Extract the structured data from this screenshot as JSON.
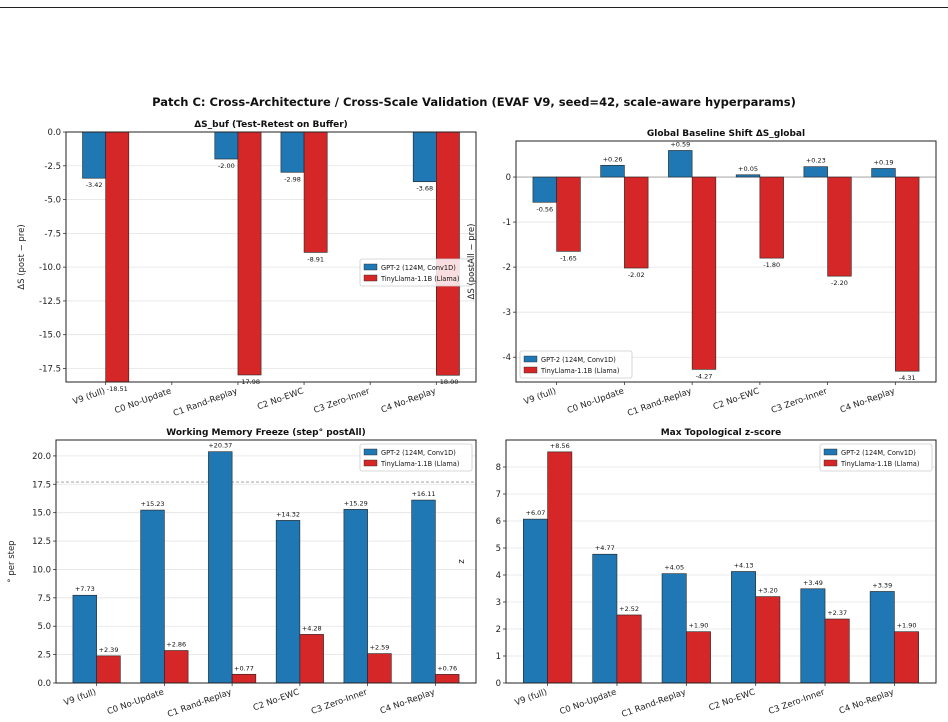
{
  "suptitle": "Patch C: Cross-Architecture / Cross-Scale Validation  (EVAF V9, seed=42, scale-aware hyperparams)",
  "colors": {
    "gpt2": "#1f77b4",
    "llama": "#d62728"
  },
  "chart_data": [
    {
      "type": "bar",
      "title": "ΔS_buf  (Test-Retest on Buffer)",
      "xlabel": "",
      "ylabel": "ΔS (post − pre)",
      "categories": [
        "V9 (full)",
        "C0 No-Update",
        "C1 Rand-Replay",
        "C2 No-EWC",
        "C3 Zero-Inner",
        "C4 No-Replay"
      ],
      "ylim": [
        -18.5,
        0
      ],
      "yticks": [
        0.0,
        -2.5,
        -5.0,
        -7.5,
        -10.0,
        -12.5,
        -15.0,
        -17.5
      ],
      "tick_decimals": 1,
      "legend_position": "center-right",
      "series": [
        {
          "name": "GPT-2 (124M, Conv1D)",
          "values": [
            -3.42,
            null,
            -2.0,
            -2.98,
            null,
            -3.68
          ],
          "labels": [
            "-3.42",
            "",
            "-2.00",
            "-2.98",
            "",
            "-3.68"
          ]
        },
        {
          "name": "TinyLlama-1.1B (Llama)",
          "values": [
            -18.51,
            null,
            -17.98,
            -8.91,
            null,
            -18.0
          ],
          "labels": [
            "-18.51",
            "",
            "-17.98",
            "-8.91",
            "",
            "-18.00"
          ]
        }
      ]
    },
    {
      "type": "bar",
      "title": "Global Baseline Shift  ΔS_global",
      "xlabel": "",
      "ylabel": "ΔS (postAll − pre)",
      "categories": [
        "V9 (full)",
        "C0 No-Update",
        "C1 Rand-Replay",
        "C2 No-EWC",
        "C3 Zero-Inner",
        "C4 No-Replay"
      ],
      "ylim": [
        -4.55,
        0.8
      ],
      "yticks": [
        0,
        -1,
        -2,
        -3,
        -4
      ],
      "tick_decimals": 0,
      "zero_line": true,
      "legend_position": "lower-left",
      "series": [
        {
          "name": "GPT-2 (124M, Conv1D)",
          "values": [
            -0.56,
            0.26,
            0.59,
            0.05,
            0.23,
            0.19
          ],
          "labels": [
            "-0.56",
            "+0.26",
            "+0.59",
            "+0.05",
            "+0.23",
            "+0.19"
          ]
        },
        {
          "name": "TinyLlama-1.1B (Llama)",
          "values": [
            -1.65,
            -2.02,
            -4.27,
            -1.8,
            -2.2,
            -4.31
          ],
          "labels": [
            "-1.65",
            "-2.02",
            "-4.27",
            "-1.80",
            "-2.20",
            "-4.31"
          ]
        }
      ]
    },
    {
      "type": "bar",
      "title": "Working Memory Freeze  (step° postAll)",
      "xlabel": "",
      "ylabel": "° per step",
      "categories": [
        "V9 (full)",
        "C0 No-Update",
        "C1 Rand-Replay",
        "C2 No-EWC",
        "C3 Zero-Inner",
        "C4 No-Replay"
      ],
      "ylim": [
        0,
        21.4
      ],
      "yticks": [
        0.0,
        2.5,
        5.0,
        7.5,
        10.0,
        12.5,
        15.0,
        17.5,
        20.0
      ],
      "tick_decimals": 1,
      "reference_line": 17.7,
      "legend_position": "top-right",
      "series": [
        {
          "name": "GPT-2 (124M, Conv1D)",
          "values": [
            7.73,
            15.23,
            20.37,
            14.32,
            15.29,
            16.11
          ],
          "labels": [
            "+7.73",
            "+15.23",
            "+20.37",
            "+14.32",
            "+15.29",
            "+16.11"
          ]
        },
        {
          "name": "TinyLlama-1.1B (Llama)",
          "values": [
            2.39,
            2.86,
            0.77,
            4.28,
            2.59,
            0.76
          ],
          "labels": [
            "+2.39",
            "+2.86",
            "+0.77",
            "+4.28",
            "+2.59",
            "+0.76"
          ]
        }
      ]
    },
    {
      "type": "bar",
      "title": "Max Topological z-score",
      "xlabel": "",
      "ylabel": "z",
      "categories": [
        "V9 (full)",
        "C0 No-Update",
        "C1 Rand-Replay",
        "C2 No-EWC",
        "C3 Zero-Inner",
        "C4 No-Replay"
      ],
      "ylim": [
        0,
        9.0
      ],
      "yticks": [
        0,
        1,
        2,
        3,
        4,
        5,
        6,
        7,
        8
      ],
      "tick_decimals": 0,
      "legend_position": "top-right",
      "series": [
        {
          "name": "GPT-2 (124M, Conv1D)",
          "values": [
            6.07,
            4.77,
            4.05,
            4.13,
            3.49,
            3.39
          ],
          "labels": [
            "+6.07",
            "+4.77",
            "+4.05",
            "+4.13",
            "+3.49",
            "+3.39"
          ]
        },
        {
          "name": "TinyLlama-1.1B (Llama)",
          "values": [
            8.56,
            2.52,
            1.9,
            3.2,
            2.37,
            1.9
          ],
          "labels": [
            "+8.56",
            "+2.52",
            "+1.90",
            "+3.20",
            "+2.37",
            "+1.90"
          ]
        }
      ]
    }
  ]
}
